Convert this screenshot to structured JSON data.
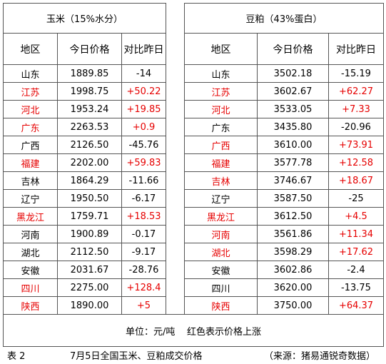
{
  "tables": [
    {
      "title": "玉米（15%水分）",
      "headers": [
        "地区",
        "今日价格",
        "对比昨日"
      ],
      "rows": [
        {
          "region": "山东",
          "price": "1889.85",
          "change": "-14",
          "color": "#000000"
        },
        {
          "region": "江苏",
          "price": "1998.75",
          "change": "+50.22",
          "color": "#e60000"
        },
        {
          "region": "河北",
          "price": "1953.24",
          "change": "+19.85",
          "color": "#e60000"
        },
        {
          "region": "广东",
          "price": "2263.53",
          "change": "+0.9",
          "color": "#e60000"
        },
        {
          "region": "广西",
          "price": "2126.50",
          "change": "-45.76",
          "color": "#000000"
        },
        {
          "region": "福建",
          "price": "2202.00",
          "change": "+59.83",
          "color": "#e60000"
        },
        {
          "region": "吉林",
          "price": "1864.29",
          "change": "-11.66",
          "color": "#000000"
        },
        {
          "region": "辽宁",
          "price": "1950.50",
          "change": "-6.17",
          "color": "#000000"
        },
        {
          "region": "黑龙江",
          "price": "1759.71",
          "change": "+18.53",
          "color": "#e60000"
        },
        {
          "region": "河南",
          "price": "1900.89",
          "change": "-0.17",
          "color": "#000000"
        },
        {
          "region": "湖北",
          "price": "2112.50",
          "change": "-9.17",
          "color": "#000000"
        },
        {
          "region": "安徽",
          "price": "2031.67",
          "change": "-28.76",
          "color": "#000000"
        },
        {
          "region": "四川",
          "price": "2275.00",
          "change": "+128.4",
          "color": "#e60000"
        },
        {
          "region": "陕西",
          "price": "1890.00",
          "change": "+5",
          "color": "#e60000"
        }
      ]
    },
    {
      "title": "豆粕（43%蛋白）",
      "headers": [
        "地区",
        "今日价格",
        "对比昨日"
      ],
      "rows": [
        {
          "region": "山东",
          "price": "3502.18",
          "change": "-15.19",
          "color": "#000000"
        },
        {
          "region": "江苏",
          "price": "3602.67",
          "change": "+62.27",
          "color": "#e60000"
        },
        {
          "region": "河北",
          "price": "3533.05",
          "change": "+7.33",
          "color": "#e60000"
        },
        {
          "region": "广东",
          "price": "3435.80",
          "change": "-20.96",
          "color": "#000000"
        },
        {
          "region": "广西",
          "price": "3610.00",
          "change": "+73.91",
          "color": "#e60000"
        },
        {
          "region": "福建",
          "price": "3577.78",
          "change": "+12.58",
          "color": "#e60000"
        },
        {
          "region": "吉林",
          "price": "3746.67",
          "change": "+18.67",
          "color": "#e60000"
        },
        {
          "region": "辽宁",
          "price": "3587.50",
          "change": "-25",
          "color": "#000000"
        },
        {
          "region": "黑龙江",
          "price": "3612.50",
          "change": "+4.5",
          "color": "#e60000"
        },
        {
          "region": "河南",
          "price": "3561.86",
          "change": "+11.34",
          "color": "#e60000"
        },
        {
          "region": "湖北",
          "price": "3598.29",
          "change": "+17.62",
          "color": "#e60000"
        },
        {
          "region": "安徽",
          "price": "3602.86",
          "change": "-2.4",
          "color": "#000000"
        },
        {
          "region": "四川",
          "price": "3620.00",
          "change": "-13.75",
          "color": "#000000"
        },
        {
          "region": "陕西",
          "price": "3750.00",
          "change": "+64.37",
          "color": "#e60000"
        }
      ]
    }
  ],
  "footer": "单位：元/吨    红色表示价格上涨",
  "caption": {
    "number": "表 2",
    "title": "7月5日全国玉米、豆粕成交价格",
    "source": "（来源：猪易通锐奇数据）"
  }
}
